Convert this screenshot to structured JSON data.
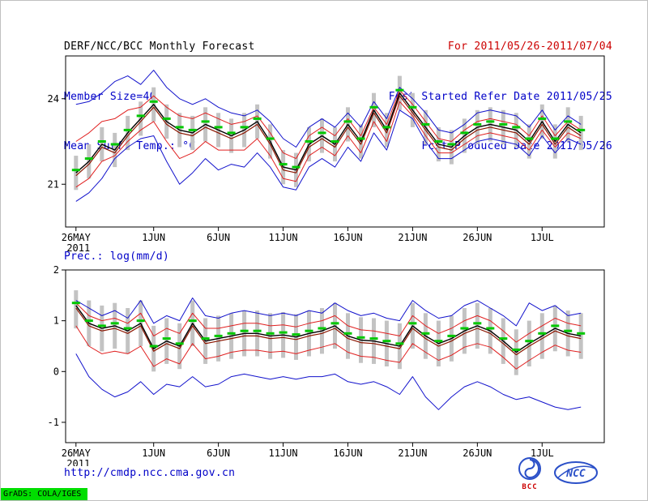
{
  "header": {
    "title": "DERF/NCC/BCC Monthly Forecast",
    "member_size": "Member Size=40",
    "for_range": "For 2011/05/26-2011/07/04",
    "fcst_started": "Fcst Started Refer Date 2011/05/25",
    "fcst_produced": "Fcst Produced Date 2011/05/26"
  },
  "footer": {
    "url": "http://cmdp.ncc.cma.gov.cn",
    "bcc_label": "BCC",
    "ncc_label": "NCC",
    "grads_stamp": "GrADS: COLA/IGES"
  },
  "palette": {
    "blue": "#1212cc",
    "red": "#e02020",
    "darkred": "#8b1500",
    "black": "#000000",
    "green": "#00c800",
    "gray": "#c3c3c3",
    "text_blue": "#0000c8",
    "text_red": "#cc0000",
    "stamp_green": "#00dd00",
    "logo_blue": "#2b50c8"
  },
  "chart_data": [
    {
      "type": "line",
      "name": "surface-temperature",
      "title": "Mean Surf. Temp.: °C",
      "x_unit": "forecast day (daily, 2011/05/26 - 2011/07/04)",
      "xlim": [
        -0.8,
        40.8
      ],
      "ylim": [
        19.5,
        25.5
      ],
      "grid": false,
      "legend": false,
      "xticks": [
        {
          "day": 0,
          "label": "26MAY",
          "sub": "2011"
        },
        {
          "day": 6,
          "label": "1JUN"
        },
        {
          "day": 11,
          "label": "6JUN"
        },
        {
          "day": 16,
          "label": "11JUN"
        },
        {
          "day": 21,
          "label": "16JUN"
        },
        {
          "day": 26,
          "label": "21JUN"
        },
        {
          "day": 31,
          "label": "26JUN"
        },
        {
          "day": 36,
          "label": "1JUL"
        }
      ],
      "yticks": [
        {
          "v": 21,
          "label": "21"
        },
        {
          "v": 24,
          "label": "24"
        }
      ],
      "series": [
        {
          "name": "ensemble-max",
          "color": "blue",
          "width": 1,
          "values": [
            23.8,
            23.9,
            24.2,
            24.6,
            24.8,
            24.5,
            25.0,
            24.4,
            24.0,
            23.8,
            24.0,
            23.7,
            23.5,
            23.4,
            23.6,
            23.2,
            22.6,
            22.3,
            23.0,
            23.3,
            23.0,
            23.5,
            23.0,
            23.9,
            23.3,
            24.4,
            24.0,
            23.5,
            22.9,
            22.8,
            23.1,
            23.5,
            23.6,
            23.5,
            23.4,
            23.0,
            23.6,
            22.9,
            23.4,
            23.1
          ]
        },
        {
          "name": "ensemble-min",
          "color": "blue",
          "width": 1,
          "values": [
            20.4,
            20.7,
            21.2,
            21.9,
            22.3,
            22.6,
            22.7,
            21.8,
            21.0,
            21.4,
            21.9,
            21.5,
            21.7,
            21.6,
            22.1,
            21.6,
            20.9,
            20.8,
            21.6,
            21.9,
            21.6,
            22.3,
            21.8,
            22.8,
            22.2,
            23.6,
            23.3,
            22.5,
            21.9,
            21.9,
            22.2,
            22.5,
            22.6,
            22.5,
            22.4,
            22.0,
            22.7,
            22.1,
            22.6,
            22.4
          ]
        },
        {
          "name": "upper-quartile",
          "color": "red",
          "width": 1,
          "values": [
            22.5,
            22.8,
            23.2,
            23.3,
            23.6,
            23.7,
            24.1,
            23.7,
            23.4,
            23.3,
            23.5,
            23.3,
            23.1,
            23.2,
            23.4,
            22.8,
            22.1,
            21.9,
            22.7,
            23.0,
            22.7,
            23.3,
            22.7,
            23.7,
            23.1,
            24.3,
            23.8,
            23.2,
            22.6,
            22.5,
            22.9,
            23.2,
            23.3,
            23.2,
            23.1,
            22.7,
            23.4,
            22.7,
            23.2,
            22.9
          ]
        },
        {
          "name": "lower-quartile",
          "color": "red",
          "width": 1,
          "values": [
            20.9,
            21.2,
            21.8,
            22.0,
            22.5,
            22.9,
            23.2,
            22.5,
            21.9,
            22.1,
            22.5,
            22.2,
            22.2,
            22.2,
            22.6,
            22.0,
            21.2,
            21.1,
            22.0,
            22.3,
            22.0,
            22.7,
            22.1,
            23.2,
            22.5,
            23.9,
            23.4,
            22.7,
            22.1,
            22.1,
            22.4,
            22.7,
            22.8,
            22.7,
            22.6,
            22.2,
            22.9,
            22.3,
            22.8,
            22.6
          ]
        },
        {
          "name": "control-run",
          "color": "darkred",
          "width": 1.2,
          "values": [
            21.3,
            21.7,
            22.3,
            22.1,
            22.7,
            23.2,
            23.7,
            23.1,
            22.8,
            22.7,
            23.0,
            22.8,
            22.6,
            22.8,
            23.1,
            22.4,
            21.5,
            21.4,
            22.3,
            22.6,
            22.3,
            23.0,
            22.4,
            23.5,
            22.8,
            24.1,
            23.5,
            22.9,
            22.3,
            22.2,
            22.6,
            22.9,
            23.0,
            22.9,
            22.8,
            22.4,
            23.1,
            22.4,
            23.0,
            22.7
          ]
        },
        {
          "name": "ensemble-mean",
          "color": "black",
          "width": 1.4,
          "values": [
            21.4,
            21.8,
            22.4,
            22.2,
            22.8,
            23.3,
            23.8,
            23.2,
            22.9,
            22.8,
            23.1,
            22.9,
            22.7,
            22.9,
            23.2,
            22.5,
            21.6,
            21.5,
            22.4,
            22.7,
            22.4,
            23.1,
            22.5,
            23.6,
            22.9,
            24.2,
            23.6,
            23.0,
            22.4,
            22.3,
            22.7,
            23.0,
            23.1,
            23.0,
            22.9,
            22.5,
            23.2,
            22.5,
            23.1,
            22.8
          ]
        }
      ],
      "markers": {
        "name": "daily-median-dash",
        "color": "green",
        "values": [
          21.5,
          21.9,
          22.5,
          22.4,
          22.9,
          23.4,
          23.9,
          23.3,
          23.0,
          22.9,
          23.2,
          23.0,
          22.8,
          23.0,
          23.3,
          22.6,
          21.7,
          21.6,
          22.5,
          22.8,
          22.5,
          23.2,
          22.6,
          23.7,
          23.0,
          24.3,
          23.7,
          23.1,
          22.5,
          22.4,
          22.8,
          23.1,
          23.2,
          23.1,
          23.0,
          22.6,
          23.3,
          22.6,
          23.2,
          22.9
        ]
      },
      "spread_bars": {
        "color": "gray",
        "low": [
          20.8,
          21.2,
          21.8,
          21.6,
          22.2,
          22.7,
          23.2,
          22.6,
          22.3,
          22.2,
          22.5,
          22.3,
          22.1,
          22.3,
          22.6,
          21.9,
          21.0,
          20.9,
          21.8,
          22.1,
          21.8,
          22.5,
          21.9,
          23.0,
          22.3,
          23.6,
          23.0,
          22.4,
          21.8,
          21.7,
          22.1,
          22.4,
          22.5,
          22.4,
          22.3,
          21.9,
          22.6,
          21.9,
          22.5,
          22.2
        ],
        "high": [
          22.0,
          22.4,
          23.0,
          22.8,
          23.4,
          23.9,
          24.4,
          23.8,
          23.5,
          23.4,
          23.7,
          23.5,
          23.3,
          23.5,
          23.8,
          23.1,
          22.2,
          22.1,
          23.0,
          23.3,
          23.0,
          23.7,
          23.1,
          24.2,
          23.5,
          24.8,
          24.2,
          23.6,
          23.0,
          22.9,
          23.3,
          23.6,
          23.7,
          23.6,
          23.5,
          23.1,
          23.8,
          23.1,
          23.7,
          23.4
        ]
      }
    },
    {
      "type": "line",
      "name": "precipitation",
      "title": "Prec.: log(mm/d)",
      "x_unit": "forecast day (daily, 2011/05/26 - 2011/07/04)",
      "xlim": [
        -0.8,
        40.8
      ],
      "ylim": [
        -1.4,
        2.0
      ],
      "grid": false,
      "legend": false,
      "xticks": [
        {
          "day": 0,
          "label": "26MAY",
          "sub": "2011"
        },
        {
          "day": 6,
          "label": "1JUN"
        },
        {
          "day": 11,
          "label": "6JUN"
        },
        {
          "day": 16,
          "label": "11JUN"
        },
        {
          "day": 21,
          "label": "16JUN"
        },
        {
          "day": 26,
          "label": "21JUN"
        },
        {
          "day": 31,
          "label": "26JUN"
        },
        {
          "day": 36,
          "label": "1JUL"
        }
      ],
      "yticks": [
        {
          "v": -1,
          "label": "-1"
        },
        {
          "v": 0,
          "label": "0"
        },
        {
          "v": 1,
          "label": "1"
        },
        {
          "v": 2,
          "label": "2"
        }
      ],
      "series": [
        {
          "name": "ensemble-max",
          "color": "blue",
          "width": 1,
          "values": [
            1.4,
            1.25,
            1.1,
            1.2,
            1.05,
            1.4,
            0.95,
            1.1,
            1.0,
            1.45,
            1.1,
            1.05,
            1.15,
            1.2,
            1.15,
            1.1,
            1.15,
            1.1,
            1.2,
            1.15,
            1.35,
            1.2,
            1.1,
            1.15,
            1.05,
            1.0,
            1.4,
            1.2,
            1.05,
            1.1,
            1.3,
            1.4,
            1.25,
            1.1,
            0.9,
            1.35,
            1.2,
            1.3,
            1.1,
            1.15
          ]
        },
        {
          "name": "ensemble-min",
          "color": "blue",
          "width": 1,
          "values": [
            0.35,
            -0.1,
            -0.35,
            -0.5,
            -0.4,
            -0.2,
            -0.45,
            -0.25,
            -0.3,
            -0.1,
            -0.3,
            -0.25,
            -0.1,
            -0.05,
            -0.1,
            -0.15,
            -0.1,
            -0.15,
            -0.1,
            -0.1,
            -0.05,
            -0.2,
            -0.25,
            -0.2,
            -0.3,
            -0.45,
            -0.1,
            -0.5,
            -0.75,
            -0.5,
            -0.3,
            -0.2,
            -0.3,
            -0.45,
            -0.55,
            -0.5,
            -0.6,
            -0.7,
            -0.75,
            -0.7
          ]
        },
        {
          "name": "upper-quartile",
          "color": "red",
          "width": 1,
          "values": [
            1.35,
            1.1,
            1.0,
            1.05,
            0.95,
            1.15,
            0.7,
            0.85,
            0.75,
            1.15,
            0.85,
            0.85,
            0.9,
            0.95,
            0.95,
            0.9,
            0.92,
            0.88,
            0.95,
            1.0,
            1.1,
            0.9,
            0.82,
            0.8,
            0.75,
            0.7,
            1.1,
            0.9,
            0.75,
            0.85,
            1.0,
            1.1,
            1.0,
            0.8,
            0.58,
            0.75,
            0.9,
            1.05,
            0.95,
            0.9
          ]
        },
        {
          "name": "lower-quartile",
          "color": "red",
          "width": 1,
          "values": [
            0.9,
            0.5,
            0.35,
            0.4,
            0.35,
            0.5,
            0.1,
            0.25,
            0.15,
            0.55,
            0.25,
            0.3,
            0.38,
            0.42,
            0.42,
            0.38,
            0.4,
            0.35,
            0.42,
            0.48,
            0.55,
            0.38,
            0.3,
            0.28,
            0.22,
            0.18,
            0.55,
            0.38,
            0.22,
            0.32,
            0.48,
            0.55,
            0.48,
            0.28,
            0.05,
            0.22,
            0.38,
            0.52,
            0.42,
            0.38
          ]
        },
        {
          "name": "control-run",
          "color": "darkred",
          "width": 1.2,
          "values": [
            1.25,
            0.9,
            0.8,
            0.85,
            0.75,
            0.9,
            0.4,
            0.55,
            0.45,
            0.9,
            0.55,
            0.6,
            0.65,
            0.7,
            0.7,
            0.65,
            0.67,
            0.63,
            0.7,
            0.75,
            0.85,
            0.65,
            0.57,
            0.55,
            0.5,
            0.45,
            0.85,
            0.65,
            0.5,
            0.6,
            0.75,
            0.85,
            0.75,
            0.55,
            0.33,
            0.5,
            0.65,
            0.8,
            0.7,
            0.65
          ]
        },
        {
          "name": "ensemble-mean",
          "color": "black",
          "width": 1.4,
          "values": [
            1.3,
            0.95,
            0.85,
            0.9,
            0.8,
            0.95,
            0.45,
            0.6,
            0.5,
            0.95,
            0.6,
            0.65,
            0.7,
            0.75,
            0.75,
            0.7,
            0.72,
            0.68,
            0.75,
            0.8,
            0.9,
            0.7,
            0.62,
            0.6,
            0.55,
            0.5,
            0.9,
            0.7,
            0.55,
            0.65,
            0.8,
            0.9,
            0.8,
            0.6,
            0.38,
            0.55,
            0.7,
            0.85,
            0.75,
            0.7
          ]
        }
      ],
      "markers": {
        "name": "daily-median-dash",
        "color": "green",
        "values": [
          1.35,
          1.0,
          0.9,
          0.95,
          0.85,
          1.0,
          0.5,
          0.65,
          0.55,
          1.0,
          0.65,
          0.7,
          0.75,
          0.8,
          0.8,
          0.75,
          0.77,
          0.73,
          0.8,
          0.85,
          0.95,
          0.75,
          0.67,
          0.65,
          0.6,
          0.55,
          0.95,
          0.75,
          0.6,
          0.7,
          0.85,
          0.95,
          0.85,
          0.65,
          0.43,
          0.6,
          0.75,
          0.9,
          0.8,
          0.75
        ]
      },
      "spread_bars": {
        "color": "gray",
        "low": [
          0.85,
          0.5,
          0.4,
          0.45,
          0.35,
          0.5,
          0.0,
          0.15,
          0.05,
          0.5,
          0.15,
          0.2,
          0.25,
          0.3,
          0.3,
          0.25,
          0.27,
          0.23,
          0.3,
          0.35,
          0.45,
          0.25,
          0.17,
          0.15,
          0.1,
          0.05,
          0.45,
          0.25,
          0.1,
          0.2,
          0.35,
          0.45,
          0.35,
          0.15,
          -0.07,
          0.1,
          0.25,
          0.4,
          0.3,
          0.25
        ],
        "high": [
          1.6,
          1.4,
          1.3,
          1.35,
          1.25,
          1.4,
          0.9,
          1.05,
          0.95,
          1.4,
          1.05,
          1.1,
          1.15,
          1.2,
          1.2,
          1.15,
          1.17,
          1.13,
          1.2,
          1.25,
          1.35,
          1.15,
          1.07,
          1.05,
          1.0,
          0.95,
          1.35,
          1.15,
          1.0,
          1.1,
          1.25,
          1.35,
          1.25,
          1.05,
          0.83,
          1.0,
          1.15,
          1.3,
          1.2,
          1.15
        ]
      }
    }
  ]
}
